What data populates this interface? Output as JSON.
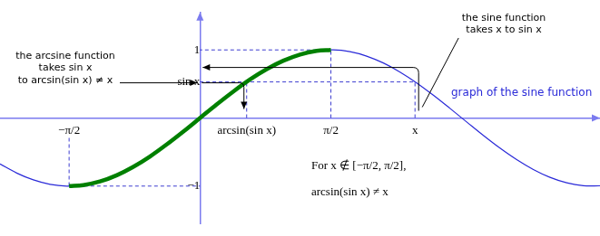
{
  "chart_data": {
    "type": "line",
    "xlim": [
      -2.4,
      4.8
    ],
    "ylim": [
      -1.55,
      1.55
    ],
    "xticks": [
      {
        "value": -1.5708,
        "label": "−π/2"
      },
      {
        "value": 0.56,
        "label": "arcsin(sin x)"
      },
      {
        "value": 1.5708,
        "label": "π/2"
      },
      {
        "value": 2.58,
        "label": "x"
      }
    ],
    "yticks": [
      {
        "value": -1,
        "label": "−1"
      },
      {
        "value": 0.53,
        "label": "sin x"
      },
      1
    ],
    "grid": false,
    "series": [
      {
        "name": "graph of the sine function",
        "color": "#2a2ad8",
        "x": [
          -2.4,
          -2.2,
          -2.0,
          -1.8,
          -1.6,
          -1.4,
          -1.2,
          -1.0,
          -0.8,
          -0.6,
          -0.4,
          -0.2,
          0,
          0.2,
          0.4,
          0.6,
          0.8,
          1.0,
          1.2,
          1.4,
          1.6,
          1.8,
          2.0,
          2.2,
          2.4,
          2.6,
          2.8,
          3.0,
          3.2,
          3.4,
          3.6,
          3.8,
          4.0,
          4.2,
          4.4,
          4.6,
          4.8
        ],
        "values": [
          -0.675,
          -0.808,
          -0.909,
          -0.974,
          -1.0,
          -0.985,
          -0.932,
          -0.841,
          -0.717,
          -0.565,
          -0.389,
          -0.199,
          0,
          0.199,
          0.389,
          0.565,
          0.717,
          0.841,
          0.932,
          0.985,
          1.0,
          0.974,
          0.909,
          0.808,
          0.675,
          0.516,
          0.335,
          0.141,
          -0.058,
          -0.256,
          -0.443,
          -0.612,
          -0.757,
          -0.872,
          -0.952,
          -0.994,
          -0.996
        ]
      },
      {
        "color": "#008000",
        "x": [
          -1.5708,
          -1.4,
          -1.2,
          -1.0,
          -0.8,
          -0.6,
          -0.4,
          -0.2,
          0,
          0.2,
          0.4,
          0.6,
          0.8,
          1.0,
          1.2,
          1.4,
          1.5708
        ],
        "values": [
          -1.0,
          -0.985,
          -0.932,
          -0.841,
          -0.717,
          -0.565,
          -0.389,
          -0.199,
          0,
          0.199,
          0.389,
          0.565,
          0.717,
          0.841,
          0.932,
          0.985,
          1.0
        ]
      }
    ],
    "annotations": [
      {
        "text": [
          "the sine function",
          "takes x to sin x"
        ]
      },
      {
        "text": [
          "the arcsine function",
          "takes sin x",
          "to arcsin(sin x) ≠ x"
        ]
      },
      {
        "text": [
          "For x ∉ [−π/2, π/2],",
          "arcsin(sin x) ≠ x"
        ]
      }
    ]
  }
}
